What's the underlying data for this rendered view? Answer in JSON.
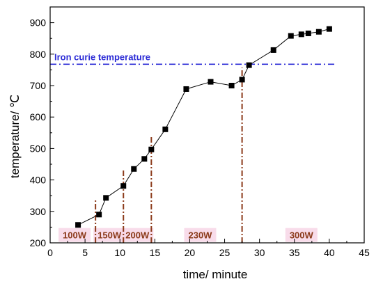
{
  "chart_data": {
    "type": "line",
    "title": "",
    "xlabel": "time/ minute",
    "ylabel": "temperature/ ℃",
    "xlim": [
      0,
      45
    ],
    "ylim": [
      200,
      950
    ],
    "xticks": [
      0,
      5,
      10,
      15,
      20,
      25,
      30,
      35,
      40,
      45
    ],
    "yticks": [
      200,
      300,
      400,
      500,
      600,
      700,
      800,
      900
    ],
    "grid": false,
    "series": [
      {
        "name": "",
        "color": "#000000",
        "marker": "square",
        "x": [
          4,
          7,
          8,
          10.5,
          12,
          13.5,
          14.5,
          16.5,
          19.5,
          23,
          26,
          27.5,
          28.5,
          32,
          34.5,
          36,
          37,
          38.5,
          40
        ],
        "y": [
          257,
          290,
          343,
          381,
          435,
          467,
          497,
          561,
          689,
          712,
          700,
          719,
          765,
          813,
          858,
          863,
          866,
          871,
          880
        ]
      }
    ],
    "reference_line": {
      "label": "Iron curie temperature",
      "y": 768,
      "x_range": [
        0,
        41
      ],
      "color": "#2b2bd6"
    },
    "phase_dividers": {
      "color": "#8b3a1a",
      "x": [
        6.5,
        10.5,
        14.5,
        27.5
      ],
      "y_top": [
        335,
        432,
        541,
        757
      ]
    },
    "phase_labels": [
      {
        "text": "100W",
        "x": 3.5
      },
      {
        "text": "150W",
        "x": 8.5
      },
      {
        "text": "200W",
        "x": 12.5
      },
      {
        "text": "230W",
        "x": 21.5
      },
      {
        "text": "300W",
        "x": 36
      }
    ]
  }
}
